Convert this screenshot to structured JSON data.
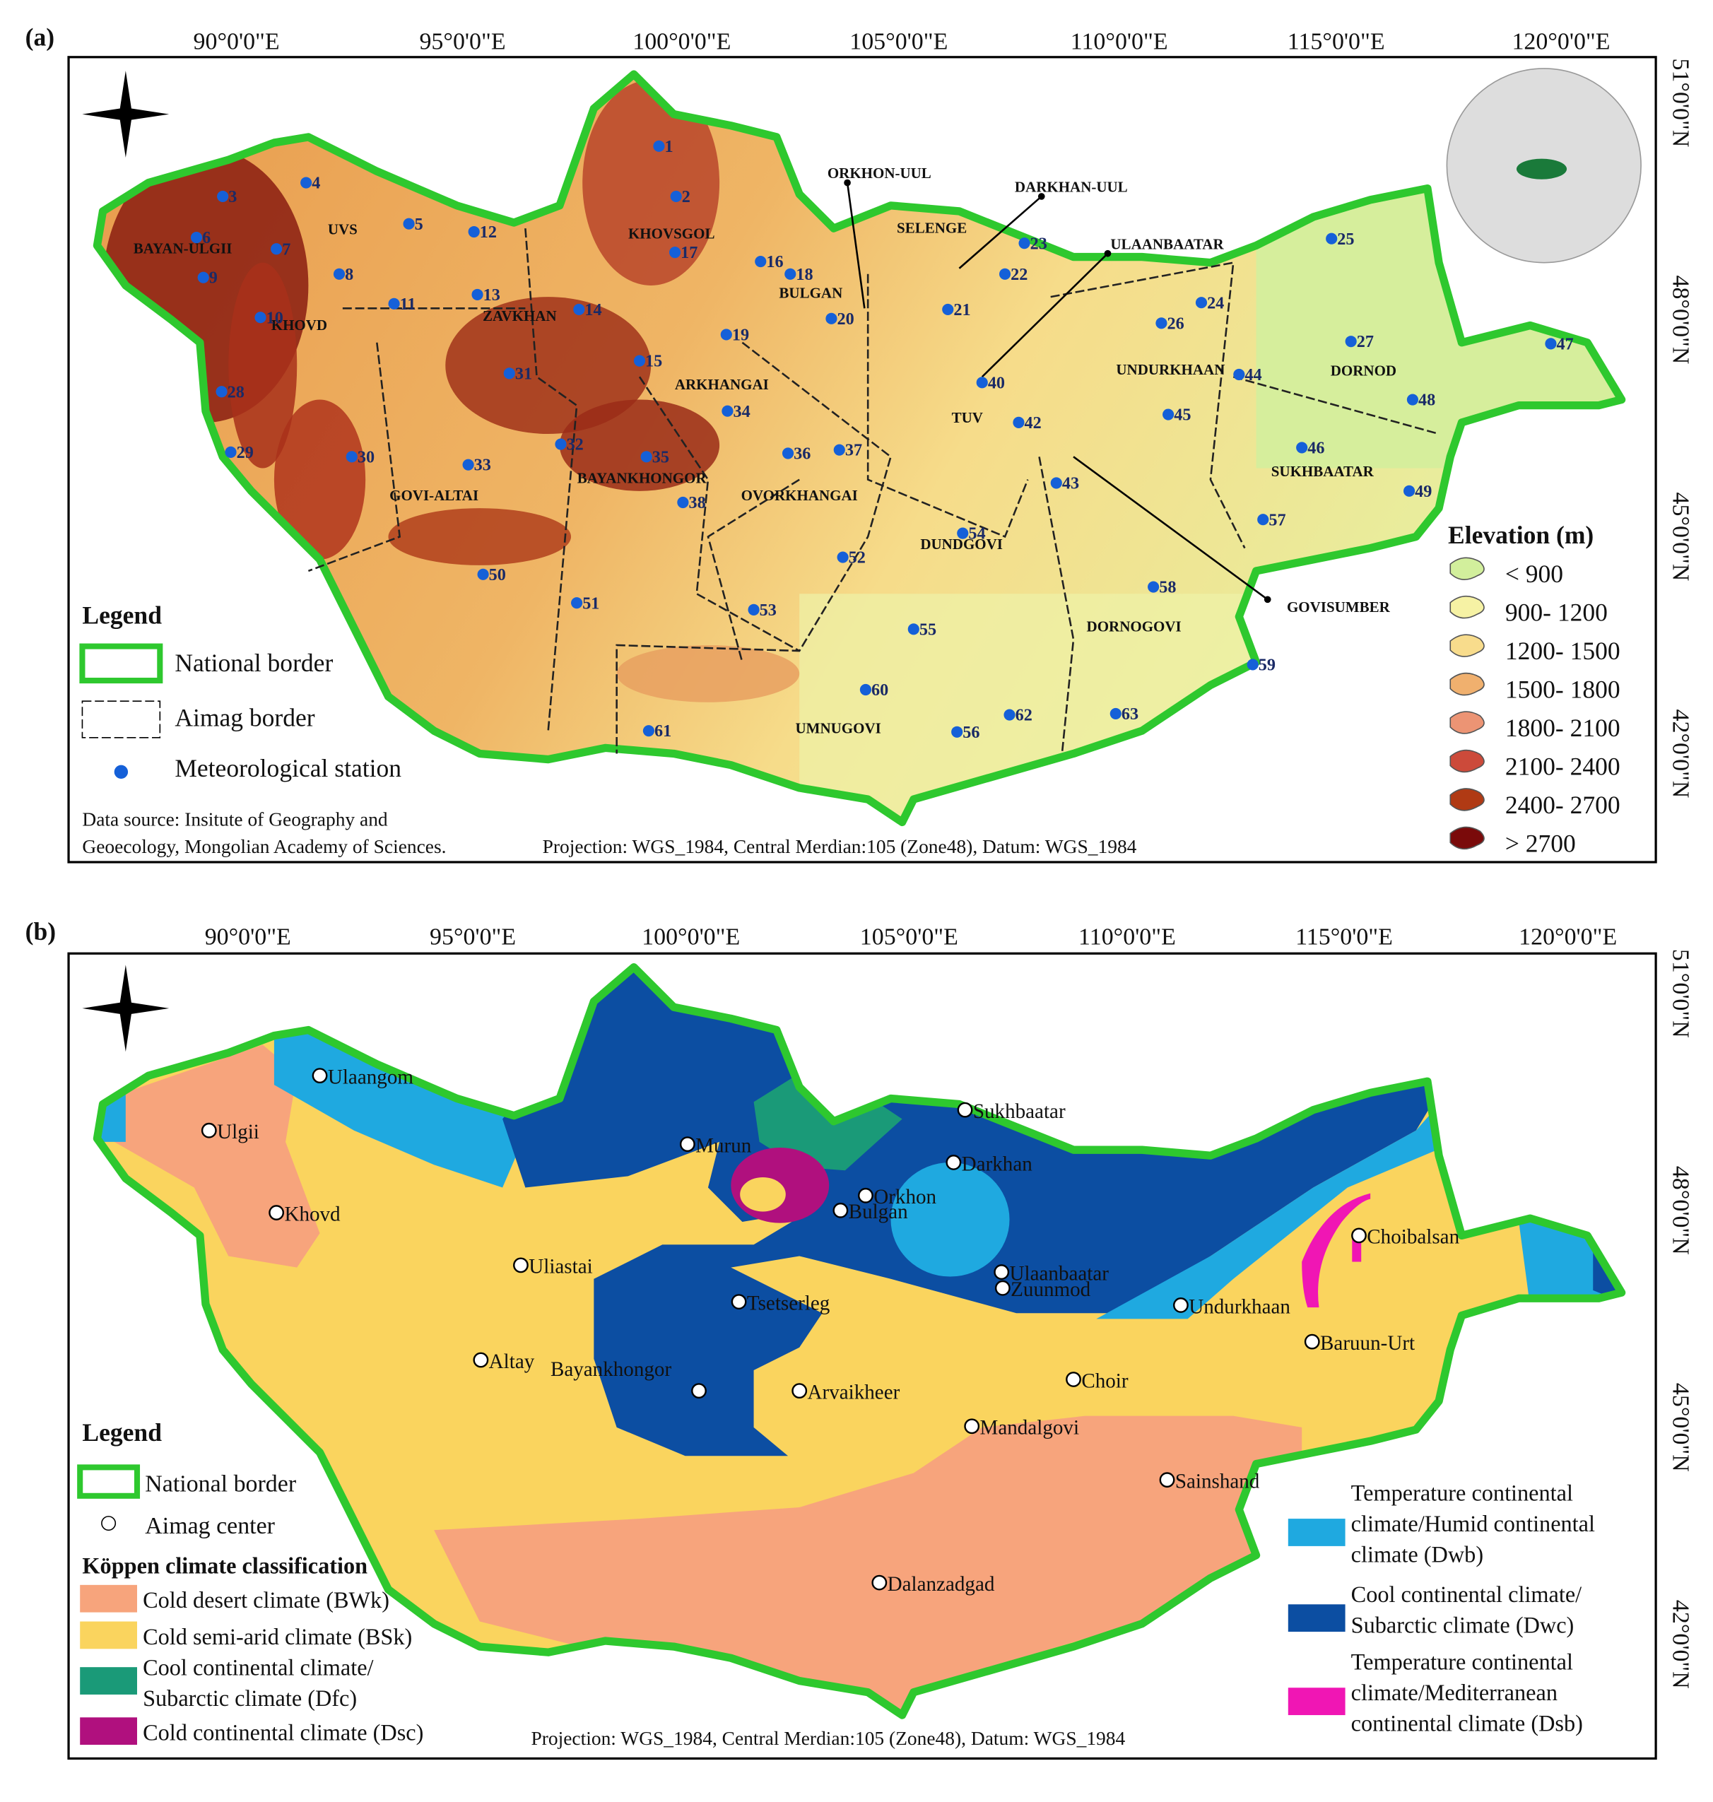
{
  "panel_a": {
    "label": "(a)",
    "lon_labels": [
      "90°0'0\"E",
      "95°0'0\"E",
      "100°0'0\"E",
      "105°0'0\"E",
      "110°0'0\"E",
      "115°0'0\"E",
      "120°0'0\"E"
    ],
    "lat_labels": [
      "51°0'0\"N",
      "48°0'0\"N",
      "45°0'0\"N",
      "42°0'0\"N"
    ],
    "aimags": [
      "BAYAN-ULGII",
      "UVS",
      "KHOVD",
      "ZAVKHAN",
      "KHOVSGOL",
      "BULGAN",
      "SELENGE",
      "ARKHANGAI",
      "TUV",
      "UNDURKHAAN",
      "DORNOD",
      "SUKHBAATAR",
      "BAYANKHONGOR",
      "OVORKHANGAI",
      "GOVI-ALTAI",
      "DUNDGOVI",
      "DORNOGOVI",
      "UMNUGOVI"
    ],
    "annotations": [
      "ORKHON-UUL",
      "DARKHAN-UUL",
      "ULAANBAATAR",
      "GOVISUMBER"
    ],
    "stations": [
      "1",
      "2",
      "3",
      "4",
      "5",
      "6",
      "7",
      "8",
      "9",
      "10",
      "11",
      "12",
      "13",
      "14",
      "15",
      "16",
      "17",
      "18",
      "19",
      "20",
      "21",
      "22",
      "23",
      "24",
      "25",
      "26",
      "27",
      "28",
      "29",
      "30",
      "31",
      "32",
      "33",
      "34",
      "35",
      "36",
      "37",
      "38",
      "40",
      "42",
      "43",
      "44",
      "45",
      "46",
      "47",
      "48",
      "49",
      "50",
      "51",
      "52",
      "53",
      "54",
      "55",
      "56",
      "57",
      "58",
      "59",
      "60",
      "61",
      "62",
      "63"
    ],
    "legend": {
      "title": "Legend",
      "items": [
        "National border",
        "Aimag border",
        "Meteorological station"
      ]
    },
    "elevation_legend": {
      "title": "Elevation (m)",
      "items": [
        "< 900",
        "900- 1200",
        "1200- 1500",
        "1500- 1800",
        "1800- 2100",
        "2100- 2400",
        "2400- 2700",
        "> 2700"
      ]
    },
    "source": [
      "Data source: Insitute of Geography and",
      "Geoecology, Mongolian Academy of Sciences.",
      "Projection: WGS_1984, Central Merdian:105 (Zone48), Datum: WGS_1984"
    ]
  },
  "panel_b": {
    "label": "(b)",
    "lon_labels": [
      "90°0'0\"E",
      "95°0'0\"E",
      "100°0'0\"E",
      "105°0'0\"E",
      "110°0'0\"E",
      "115°0'0\"E",
      "120°0'0\"E"
    ],
    "lat_labels": [
      "51°0'0\"N",
      "48°0'0\"N",
      "45°0'0\"N",
      "42°0'0\"N"
    ],
    "centers": [
      "Ulaangom",
      "Ulgii",
      "Khovd",
      "Murun",
      "Orkhon",
      "Bulgan",
      "Darkhan",
      "Sukhbaatar",
      "Uliastai",
      "Tsetserleg",
      "Ulaanbaatar",
      "Zuunmod",
      "Undurkhaan",
      "Choibalsan",
      "Baruun-Urt",
      "Altay",
      "Bayankhongor",
      "Arvaikheer",
      "Choir",
      "Mandalgovi",
      "Sainshand",
      "Dalanzadgad"
    ],
    "legend": {
      "title": "Legend",
      "items": [
        "National border",
        "Aimag center"
      ],
      "koppen_title": "Köppen climate classification",
      "classes": [
        [
          "Cold desert climate (BWk)"
        ],
        [
          "Cold semi-arid climate (BSk)"
        ],
        [
          "Cool continental climate/",
          "Subarctic climate (Dfc)"
        ],
        [
          "Cold continental climate (Dsc)"
        ],
        [
          "Temperature continental",
          "climate/Humid continental",
          "climate (Dwb)"
        ],
        [
          "Cool continental climate/",
          "Subarctic climate (Dwc)"
        ],
        [
          "Temperature continental",
          "climate/Mediterranean",
          "continental climate (Dsb)"
        ]
      ]
    },
    "source": "Projection: WGS_1984, Central Merdian:105 (Zone48), Datum: WGS_1984"
  }
}
